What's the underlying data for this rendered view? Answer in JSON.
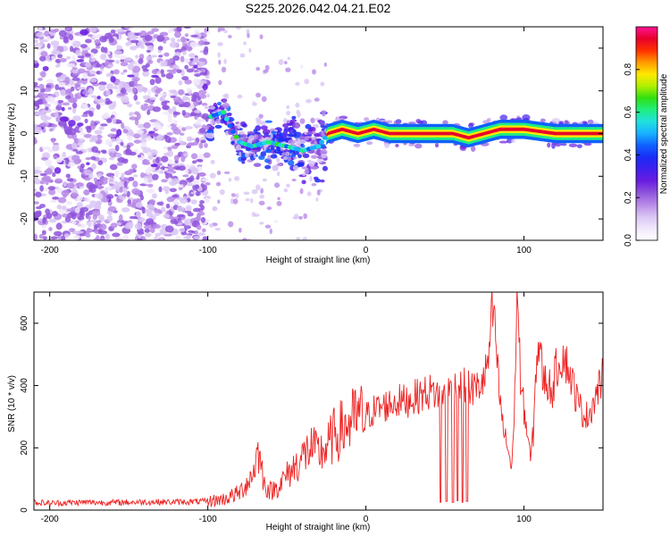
{
  "figure_title": "S225.2026.042.04.21.E02",
  "colors": {
    "snr_line": "#ee2222",
    "background": "#ffffff",
    "axis": "#000000",
    "colormap": [
      "#ffffff",
      "#f1e8fb",
      "#d9c5f4",
      "#b98be8",
      "#8f55dc",
      "#6a1ee0",
      "#4020ee",
      "#1a2cf6",
      "#1060ff",
      "#18b0ff",
      "#20e0e0",
      "#20ee80",
      "#30e010",
      "#b0f000",
      "#ffe800",
      "#ff9a00",
      "#ff3000",
      "#e8002a",
      "#ff1493"
    ]
  },
  "chart_data": [
    {
      "type": "heatmap",
      "name": "spectrogram",
      "title": "S225.2026.042.04.21.E02",
      "xlabel": "Height of straight line (km)",
      "ylabel": "Frequency (Hz)",
      "xlim": [
        -210,
        150
      ],
      "ylim": [
        -25,
        25
      ],
      "x_ticks": [
        -200,
        -100,
        0,
        100
      ],
      "y_ticks": [
        -20,
        -10,
        0,
        10,
        20
      ],
      "colorbar": {
        "label": "Normalized spectral amplitude",
        "range": [
          0,
          1
        ],
        "ticks": [
          "0.0",
          "0.2",
          "0.4",
          "0.6",
          "0.8"
        ]
      },
      "regions": [
        {
          "x_from": -210,
          "x_to": -100,
          "description": "broadband noise",
          "amplitude": 0.15
        },
        {
          "x_from": -100,
          "x_to": -25,
          "description": "weak tone drifting",
          "amplitude": 0.3
        },
        {
          "x_from": -25,
          "x_to": 150,
          "description": "strong narrowband tone near 0 Hz",
          "amplitude": 0.9
        }
      ],
      "tone_track": [
        {
          "x": -98,
          "f": 4
        },
        {
          "x": -90,
          "f": 5
        },
        {
          "x": -85,
          "f": 1
        },
        {
          "x": -80,
          "f": -2
        },
        {
          "x": -72,
          "f": -3
        },
        {
          "x": -62,
          "f": -2
        },
        {
          "x": -50,
          "f": -3
        },
        {
          "x": -40,
          "f": -4
        },
        {
          "x": -30,
          "f": -3
        },
        {
          "x": -24,
          "f": 0
        },
        {
          "x": -15,
          "f": 1
        },
        {
          "x": -5,
          "f": 0
        },
        {
          "x": 5,
          "f": 1
        },
        {
          "x": 15,
          "f": 0
        },
        {
          "x": 30,
          "f": 0
        },
        {
          "x": 45,
          "f": 0
        },
        {
          "x": 55,
          "f": 0
        },
        {
          "x": 65,
          "f": -1
        },
        {
          "x": 75,
          "f": 0
        },
        {
          "x": 85,
          "f": 1
        },
        {
          "x": 100,
          "f": 1
        },
        {
          "x": 120,
          "f": 0
        },
        {
          "x": 135,
          "f": 0
        },
        {
          "x": 150,
          "f": 0
        }
      ]
    },
    {
      "type": "line",
      "name": "snr",
      "xlabel": "Height of straight line (km)",
      "ylabel": "SNR (10 * v/v)",
      "xlim": [
        -210,
        150
      ],
      "ylim": [
        0,
        700
      ],
      "x_ticks": [
        -200,
        -100,
        0,
        100
      ],
      "y_ticks": [
        0,
        200,
        400,
        600
      ],
      "series": [
        {
          "name": "SNR",
          "x": [
            -210,
            -200,
            -180,
            -160,
            -140,
            -120,
            -100,
            -90,
            -80,
            -72,
            -68,
            -64,
            -60,
            -55,
            -50,
            -45,
            -40,
            -35,
            -30,
            -25,
            -20,
            -15,
            -10,
            -5,
            0,
            5,
            10,
            15,
            20,
            25,
            30,
            35,
            40,
            45,
            50,
            55,
            60,
            65,
            70,
            75,
            78,
            80,
            82,
            84,
            86,
            88,
            90,
            92,
            94,
            95,
            96,
            97,
            98,
            100,
            102,
            104,
            106,
            108,
            110,
            112,
            115,
            118,
            120,
            125,
            130,
            135,
            140,
            145,
            150
          ],
          "y": [
            25,
            22,
            25,
            24,
            26,
            26,
            28,
            35,
            55,
            110,
            190,
            80,
            60,
            80,
            110,
            140,
            170,
            200,
            180,
            200,
            240,
            260,
            280,
            300,
            300,
            320,
            330,
            340,
            350,
            350,
            360,
            370,
            380,
            375,
            370,
            390,
            400,
            390,
            390,
            420,
            500,
            640,
            560,
            400,
            300,
            230,
            200,
            130,
            300,
            620,
            700,
            560,
            380,
            330,
            250,
            160,
            250,
            500,
            530,
            420,
            410,
            380,
            450,
            500,
            420,
            330,
            300,
            360,
            430
          ]
        }
      ],
      "dropouts": [
        {
          "x": 47,
          "y": 25
        },
        {
          "x": 51,
          "y": 28
        },
        {
          "x": 55,
          "y": 25
        },
        {
          "x": 58,
          "y": 30
        },
        {
          "x": 61,
          "y": 25
        },
        {
          "x": 64,
          "y": 28
        }
      ]
    }
  ]
}
